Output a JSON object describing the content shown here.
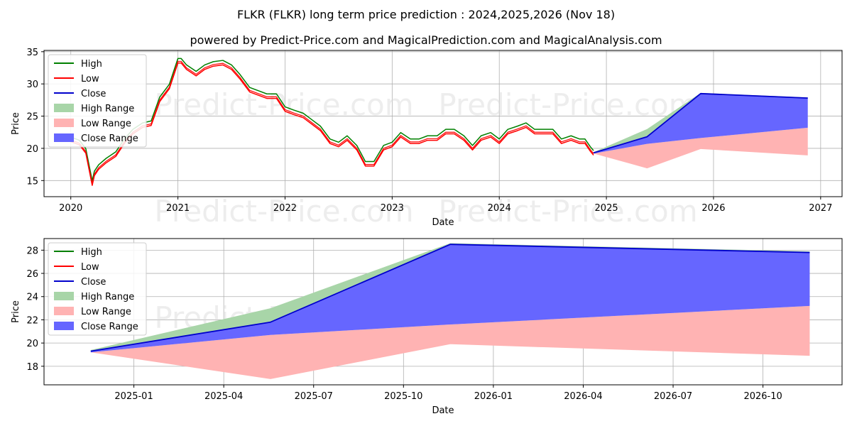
{
  "header": {
    "title": "FLKR (FLKR) long term price prediction : 2024,2025,2026 (Nov 18)",
    "subtitle": "powered by Predict-Price.com and MagicalPrediction.com and MagicalAnalysis.com"
  },
  "watermark": "Predict-Price.com",
  "colors": {
    "high": "#008000",
    "low": "#ff0000",
    "close": "#0000cc",
    "high_range": "#a8d5a8",
    "low_range": "#ffb3b3",
    "close_range": "#6666ff"
  },
  "legend": [
    "High",
    "Low",
    "Close",
    "High Range",
    "Low Range",
    "Close Range"
  ],
  "chart_data": [
    {
      "type": "line",
      "id": "top",
      "xlabel": "Date",
      "ylabel": "Price",
      "xlim": [
        2019.75,
        2027.2
      ],
      "ylim": [
        12.5,
        35.2
      ],
      "xticks": [
        2020,
        2021,
        2022,
        2023,
        2024,
        2025,
        2026,
        2027
      ],
      "xtick_labels": [
        "2020",
        "2021",
        "2022",
        "2023",
        "2024",
        "2025",
        "2026",
        "2027"
      ],
      "yticks": [
        15,
        20,
        25,
        30,
        35
      ],
      "ytick_labels": [
        "15",
        "20",
        "25",
        "30",
        "35"
      ],
      "legend_position": "upper-left",
      "history": {
        "x": [
          2020.0,
          2020.08,
          2020.14,
          2020.2,
          2020.22,
          2020.26,
          2020.33,
          2020.42,
          2020.5,
          2020.58,
          2020.67,
          2020.75,
          2020.83,
          2020.92,
          2021.0,
          2021.03,
          2021.08,
          2021.17,
          2021.25,
          2021.33,
          2021.42,
          2021.5,
          2021.58,
          2021.67,
          2021.75,
          2021.83,
          2021.92,
          2022.0,
          2022.08,
          2022.17,
          2022.25,
          2022.33,
          2022.42,
          2022.5,
          2022.58,
          2022.67,
          2022.75,
          2022.83,
          2022.92,
          2023.0,
          2023.08,
          2023.17,
          2023.25,
          2023.33,
          2023.42,
          2023.5,
          2023.58,
          2023.67,
          2023.75,
          2023.83,
          2023.92,
          2024.0,
          2024.08,
          2024.17,
          2024.25,
          2024.33,
          2024.42,
          2024.5,
          2024.58,
          2024.67,
          2024.75,
          2024.8,
          2024.85,
          2024.88
        ],
        "close": [
          21.3,
          20.8,
          19.5,
          14.5,
          16.0,
          17.0,
          18.0,
          19.0,
          21.0,
          22.5,
          23.5,
          23.8,
          27.5,
          29.5,
          33.5,
          33.5,
          32.5,
          31.5,
          32.5,
          33.0,
          33.2,
          32.5,
          31.0,
          29.0,
          28.5,
          28.0,
          28.0,
          26.0,
          25.5,
          25.0,
          24.0,
          23.0,
          21.0,
          20.5,
          21.5,
          20.0,
          17.5,
          17.5,
          20.0,
          20.5,
          22.0,
          21.0,
          21.0,
          21.5,
          21.5,
          22.5,
          22.5,
          21.5,
          20.0,
          21.5,
          22.0,
          21.0,
          22.5,
          23.0,
          23.5,
          22.5,
          22.5,
          22.5,
          21.0,
          21.5,
          21.0,
          21.0,
          19.8,
          19.2
        ]
      },
      "forecast": {
        "x": [
          2024.88,
          2025.38,
          2025.88,
          2026.88
        ],
        "high": [
          19.4,
          23.0,
          28.6,
          27.9
        ],
        "low": [
          19.2,
          16.9,
          19.9,
          18.9
        ],
        "close": [
          19.3,
          21.8,
          28.5,
          27.8
        ],
        "high_range_upper": [
          19.4,
          23.0,
          28.6,
          27.9
        ],
        "high_range_lower": [
          19.3,
          21.8,
          28.5,
          27.8
        ],
        "close_range_upper": [
          19.3,
          21.8,
          28.5,
          27.8
        ],
        "close_range_lower": [
          19.2,
          20.7,
          21.6,
          23.2
        ],
        "low_range_upper": [
          19.2,
          20.7,
          21.6,
          23.2
        ],
        "low_range_lower": [
          19.2,
          16.9,
          19.9,
          18.9
        ]
      }
    },
    {
      "type": "area",
      "id": "bottom",
      "xlabel": "Date",
      "ylabel": "Price",
      "xlim": [
        2024.75,
        2026.97
      ],
      "ylim": [
        16.4,
        29.0
      ],
      "xticks": [
        2025.0,
        2025.25,
        2025.5,
        2025.75,
        2026.0,
        2026.25,
        2026.5,
        2026.75
      ],
      "xtick_labels": [
        "2025-01",
        "2025-04",
        "2025-07",
        "2025-10",
        "2026-01",
        "2026-04",
        "2026-07",
        "2026-10"
      ],
      "yticks": [
        18,
        20,
        22,
        24,
        26,
        28
      ],
      "ytick_labels": [
        "18",
        "20",
        "22",
        "24",
        "26",
        "28"
      ],
      "legend_position": "upper-left",
      "forecast": {
        "x": [
          2024.88,
          2025.38,
          2025.88,
          2026.88
        ],
        "high": [
          19.4,
          23.0,
          28.6,
          27.9
        ],
        "low": [
          19.2,
          16.9,
          19.9,
          18.9
        ],
        "close": [
          19.3,
          21.8,
          28.5,
          27.8
        ],
        "high_range_upper": [
          19.4,
          23.0,
          28.6,
          27.9
        ],
        "high_range_lower": [
          19.3,
          21.8,
          28.5,
          27.8
        ],
        "close_range_upper": [
          19.3,
          21.8,
          28.5,
          27.8
        ],
        "close_range_lower": [
          19.2,
          20.7,
          21.6,
          23.2
        ],
        "low_range_upper": [
          19.2,
          20.7,
          21.6,
          23.2
        ],
        "low_range_lower": [
          19.2,
          16.9,
          19.9,
          18.9
        ]
      }
    }
  ]
}
